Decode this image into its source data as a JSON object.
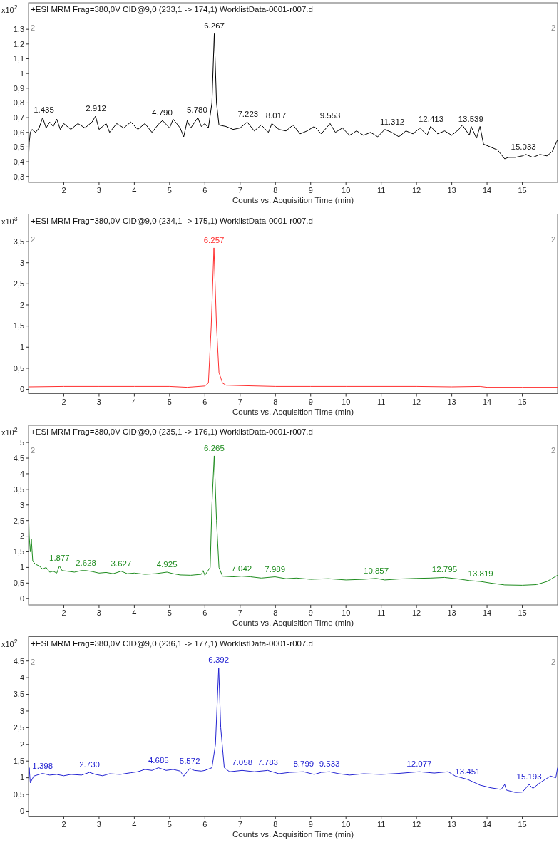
{
  "chart_data": [
    {
      "type": "line",
      "title": "+ESI MRM Frag=380,0V CID@9,0 (233,1 -> 174,1) WorklistData-0001-r007.d",
      "xlabel": "Counts vs. Acquisition Time (min)",
      "ylabel": "x10$^{2}$",
      "xlim": [
        1,
        16
      ],
      "xticks": [
        2,
        3,
        4,
        5,
        6,
        7,
        8,
        9,
        10,
        11,
        12,
        13,
        14,
        15
      ],
      "ylim": [
        0.26,
        1.48
      ],
      "yticks": [
        {
          "value": 0.3,
          "label": "0,3"
        },
        {
          "value": 0.4,
          "label": "0,4"
        },
        {
          "value": 0.5,
          "label": "0,5"
        },
        {
          "value": 0.6,
          "label": "0,6"
        },
        {
          "value": 0.7,
          "label": "0,7"
        },
        {
          "value": 0.8,
          "label": "0,8"
        },
        {
          "value": 0.9,
          "label": "0,9"
        },
        {
          "value": 1,
          "label": "1"
        },
        {
          "value": 1.1,
          "label": "1,1"
        },
        {
          "value": 1.2,
          "label": "1,2"
        },
        {
          "value": 1.3,
          "label": "1,3"
        }
      ],
      "grid": false,
      "legend": false,
      "series": [
        {
          "color": "#000000",
          "x": [
            1.0,
            1.02,
            1.05,
            1.1,
            1.2,
            1.3,
            1.4,
            1.5,
            1.6,
            1.7,
            1.8,
            1.9,
            2.0,
            2.2,
            2.4,
            2.6,
            2.8,
            2.9,
            3.0,
            3.2,
            3.3,
            3.5,
            3.7,
            3.9,
            4.1,
            4.3,
            4.5,
            4.7,
            4.8,
            5.0,
            5.1,
            5.3,
            5.4,
            5.5,
            5.6,
            5.8,
            5.9,
            6.0,
            6.1,
            6.2,
            6.267,
            6.33,
            6.4,
            6.6,
            6.8,
            7.0,
            7.2,
            7.4,
            7.6,
            7.8,
            7.9,
            8.1,
            8.3,
            8.5,
            8.7,
            8.9,
            9.1,
            9.3,
            9.55,
            9.7,
            9.9,
            10.1,
            10.3,
            10.5,
            10.7,
            10.9,
            11.1,
            11.3,
            11.5,
            11.7,
            11.9,
            12.1,
            12.3,
            12.4,
            12.6,
            12.8,
            13.0,
            13.2,
            13.3,
            13.5,
            13.55,
            13.7,
            13.8,
            13.9,
            14.1,
            14.3,
            14.4,
            14.5,
            14.6,
            14.8,
            15.0,
            15.1,
            15.3,
            15.5,
            15.7,
            15.85,
            16.0
          ],
          "values": [
            0.4,
            0.53,
            0.6,
            0.62,
            0.6,
            0.63,
            0.7,
            0.63,
            0.67,
            0.64,
            0.69,
            0.62,
            0.66,
            0.62,
            0.66,
            0.63,
            0.67,
            0.71,
            0.62,
            0.66,
            0.6,
            0.66,
            0.63,
            0.67,
            0.62,
            0.66,
            0.6,
            0.66,
            0.68,
            0.63,
            0.69,
            0.63,
            0.57,
            0.68,
            0.63,
            0.7,
            0.64,
            0.66,
            0.63,
            0.8,
            1.27,
            0.8,
            0.65,
            0.64,
            0.62,
            0.63,
            0.67,
            0.61,
            0.65,
            0.6,
            0.66,
            0.62,
            0.61,
            0.65,
            0.59,
            0.61,
            0.64,
            0.59,
            0.66,
            0.6,
            0.63,
            0.58,
            0.61,
            0.58,
            0.6,
            0.57,
            0.62,
            0.6,
            0.57,
            0.61,
            0.59,
            0.63,
            0.58,
            0.64,
            0.59,
            0.61,
            0.58,
            0.62,
            0.65,
            0.58,
            0.64,
            0.56,
            0.64,
            0.52,
            0.5,
            0.48,
            0.45,
            0.42,
            0.43,
            0.43,
            0.44,
            0.45,
            0.43,
            0.45,
            0.44,
            0.47,
            0.55
          ]
        }
      ],
      "annotations": [
        "2",
        "2",
        {
          "text": "1.435",
          "x": 1.435,
          "y": 0.7
        },
        {
          "text": "2.912",
          "x": 2.912,
          "y": 0.71
        },
        {
          "text": "4.790",
          "x": 4.79,
          "y": 0.68
        },
        {
          "text": "5.780",
          "x": 5.78,
          "y": 0.7
        },
        {
          "text": "6.267",
          "x": 6.267,
          "y": 1.27
        },
        {
          "text": "7.223",
          "x": 7.223,
          "y": 0.67
        },
        {
          "text": "8.017",
          "x": 8.017,
          "y": 0.66
        },
        {
          "text": "9.553",
          "x": 9.553,
          "y": 0.66
        },
        {
          "text": "11.312",
          "x": 11.312,
          "y": 0.62
        },
        {
          "text": "12.413",
          "x": 12.413,
          "y": 0.64
        },
        {
          "text": "13.539",
          "x": 13.539,
          "y": 0.64
        },
        {
          "text": "15.033",
          "x": 15.033,
          "y": 0.45
        }
      ]
    },
    {
      "type": "line",
      "title": "+ESI MRM Frag=380,0V CID@9,0 (234,1 -> 175,1) WorklistData-0001-r007.d",
      "xlabel": "Counts vs. Acquisition Time (min)",
      "ylabel": "x10$^{3}$",
      "xlim": [
        1,
        16
      ],
      "xticks": [
        2,
        3,
        4,
        5,
        6,
        7,
        8,
        9,
        10,
        11,
        12,
        13,
        14,
        15
      ],
      "ylim": [
        -0.1,
        4.15
      ],
      "yticks": [
        0,
        {
          "value": 0.5,
          "label": "0,5"
        },
        1,
        {
          "value": 1.5,
          "label": "1,5"
        },
        2,
        {
          "value": 2.5,
          "label": "2,5"
        },
        3,
        {
          "value": 3.5,
          "label": "3,5"
        }
      ],
      "grid": false,
      "legend": false,
      "series": [
        {
          "color": "#ff3030",
          "x": [
            1.0,
            2,
            3,
            4,
            5,
            5.5,
            6.0,
            6.1,
            6.18,
            6.257,
            6.33,
            6.4,
            6.5,
            6.6,
            7,
            8,
            9,
            10,
            11,
            12,
            13,
            13.8,
            14,
            15,
            16
          ],
          "values": [
            0.06,
            0.07,
            0.07,
            0.07,
            0.07,
            0.05,
            0.08,
            0.15,
            1.5,
            3.35,
            1.5,
            0.4,
            0.15,
            0.1,
            0.09,
            0.07,
            0.07,
            0.07,
            0.07,
            0.07,
            0.06,
            0.07,
            0.05,
            0.05,
            0.05
          ]
        }
      ],
      "annotations": [
        "2",
        "2",
        {
          "text": "6.257",
          "x": 6.257,
          "y": 3.35
        }
      ]
    },
    {
      "type": "line",
      "title": "+ESI MRM Frag=380,0V CID@9,0 (235,1 -> 176,1) WorklistData-0001-r007.d",
      "xlabel": "Counts vs. Acquisition Time (min)",
      "ylabel": "x10$^{2}$",
      "xlim": [
        1,
        16
      ],
      "xticks": [
        2,
        3,
        4,
        5,
        6,
        7,
        8,
        9,
        10,
        11,
        12,
        13,
        14,
        15
      ],
      "ylim": [
        -0.2,
        5.55
      ],
      "yticks": [
        0,
        {
          "value": 0.5,
          "label": "0,5"
        },
        1,
        {
          "value": 1.5,
          "label": "1,5"
        },
        2,
        {
          "value": 2.5,
          "label": "2,5"
        },
        3,
        {
          "value": 3.5,
          "label": "3,5"
        },
        4,
        {
          "value": 4.5,
          "label": "4,5"
        },
        5
      ],
      "grid": false,
      "legend": false,
      "series": [
        {
          "color": "#1e8c1e",
          "x": [
            1.0,
            1.02,
            1.05,
            1.08,
            1.12,
            1.2,
            1.3,
            1.4,
            1.5,
            1.6,
            1.7,
            1.8,
            1.877,
            1.95,
            2.1,
            2.3,
            2.5,
            2.628,
            2.8,
            3.0,
            3.2,
            3.4,
            3.627,
            3.8,
            4.0,
            4.3,
            4.6,
            4.925,
            5.1,
            5.3,
            5.6,
            5.9,
            5.95,
            6.0,
            6.15,
            6.2,
            6.265,
            6.33,
            6.4,
            6.5,
            6.8,
            7.042,
            7.3,
            7.6,
            7.989,
            8.3,
            8.6,
            9.0,
            9.5,
            10.0,
            10.5,
            10.857,
            11.1,
            11.5,
            12.0,
            12.4,
            12.795,
            13.2,
            13.5,
            13.819,
            14.1,
            14.5,
            15.0,
            15.4,
            15.7,
            16.0
          ],
          "values": [
            2.9,
            2.0,
            1.5,
            1.9,
            1.2,
            1.1,
            1.05,
            0.95,
            1.0,
            0.85,
            0.88,
            0.82,
            1.05,
            0.9,
            0.88,
            0.85,
            0.9,
            0.9,
            0.87,
            0.82,
            0.84,
            0.8,
            0.88,
            0.8,
            0.82,
            0.78,
            0.8,
            0.85,
            0.8,
            0.76,
            0.75,
            0.78,
            0.9,
            0.75,
            1.0,
            3.0,
            4.57,
            2.5,
            1.0,
            0.72,
            0.7,
            0.72,
            0.7,
            0.66,
            0.7,
            0.64,
            0.66,
            0.62,
            0.64,
            0.6,
            0.62,
            0.65,
            0.6,
            0.63,
            0.65,
            0.66,
            0.68,
            0.63,
            0.58,
            0.55,
            0.5,
            0.44,
            0.43,
            0.45,
            0.55,
            0.75
          ]
        }
      ],
      "annotations": [
        "2",
        "2",
        {
          "text": "1.877",
          "x": 1.877,
          "y": 1.05
        },
        {
          "text": "2.628",
          "x": 2.628,
          "y": 0.9
        },
        {
          "text": "3.627",
          "x": 3.627,
          "y": 0.88
        },
        {
          "text": "4.925",
          "x": 4.925,
          "y": 0.85
        },
        {
          "text": "6.265",
          "x": 6.265,
          "y": 4.57
        },
        {
          "text": "7.042",
          "x": 7.042,
          "y": 0.72
        },
        {
          "text": "7.989",
          "x": 7.989,
          "y": 0.7
        },
        {
          "text": "10.857",
          "x": 10.857,
          "y": 0.65
        },
        {
          "text": "12.795",
          "x": 12.795,
          "y": 0.68
        },
        {
          "text": "13.819",
          "x": 13.819,
          "y": 0.55
        }
      ]
    },
    {
      "type": "line",
      "title": "+ESI MRM Frag=380,0V CID@9,0 (236,1 -> 177,1) WorklistData-0001-r007.d",
      "xlabel": "Counts vs. Acquisition Time (min)",
      "ylabel": "x10$^{2}$",
      "xlim": [
        1,
        16
      ],
      "xticks": [
        2,
        3,
        4,
        5,
        6,
        7,
        8,
        9,
        10,
        11,
        12,
        13,
        14,
        15
      ],
      "ylim": [
        -0.15,
        5.23
      ],
      "yticks": [
        0,
        {
          "value": 0.5,
          "label": "0,5"
        },
        1,
        {
          "value": 1.5,
          "label": "1,5"
        },
        2,
        {
          "value": 2.5,
          "label": "2,5"
        },
        3,
        {
          "value": 3.5,
          "label": "3,5"
        },
        4,
        {
          "value": 4.5,
          "label": "4,5"
        }
      ],
      "grid": false,
      "legend": false,
      "series": [
        {
          "color": "#2323d2",
          "x": [
            1.0,
            1.02,
            1.05,
            1.15,
            1.3,
            1.398,
            1.6,
            1.8,
            2.0,
            2.2,
            2.5,
            2.73,
            2.9,
            3.1,
            3.3,
            3.6,
            3.9,
            4.1,
            4.3,
            4.5,
            4.685,
            4.9,
            5.1,
            5.3,
            5.4,
            5.5,
            5.572,
            5.7,
            5.9,
            6.0,
            6.2,
            6.3,
            6.392,
            6.45,
            6.55,
            6.7,
            7.058,
            7.4,
            7.783,
            8.1,
            8.4,
            8.799,
            9.1,
            9.3,
            9.533,
            9.8,
            10.1,
            10.5,
            11.0,
            11.5,
            12.077,
            12.5,
            12.9,
            13.1,
            13.451,
            13.8,
            14.1,
            14.4,
            14.5,
            14.55,
            14.8,
            15.0,
            15.193,
            15.3,
            15.5,
            15.8,
            15.95,
            16.0
          ],
          "values": [
            0.65,
            1.3,
            0.85,
            1.05,
            1.1,
            1.13,
            1.08,
            1.1,
            1.06,
            1.1,
            1.08,
            1.16,
            1.1,
            1.06,
            1.12,
            1.1,
            1.15,
            1.18,
            1.25,
            1.22,
            1.3,
            1.22,
            1.25,
            1.2,
            1.05,
            1.18,
            1.28,
            1.22,
            1.2,
            1.22,
            1.3,
            2.0,
            4.3,
            2.5,
            1.3,
            1.18,
            1.22,
            1.18,
            1.22,
            1.12,
            1.16,
            1.18,
            1.1,
            1.16,
            1.18,
            1.12,
            1.08,
            1.12,
            1.1,
            1.13,
            1.18,
            1.14,
            1.18,
            1.05,
            0.95,
            0.78,
            0.7,
            0.65,
            0.8,
            0.63,
            0.56,
            0.57,
            0.8,
            0.68,
            0.85,
            1.05,
            1.0,
            1.3
          ]
        }
      ],
      "annotations": [
        "2",
        "2",
        {
          "text": "1.398",
          "x": 1.398,
          "y": 1.13
        },
        {
          "text": "2.730",
          "x": 2.73,
          "y": 1.16
        },
        {
          "text": "4.685",
          "x": 4.685,
          "y": 1.3
        },
        {
          "text": "5.572",
          "x": 5.572,
          "y": 1.28
        },
        {
          "text": "6.392",
          "x": 6.392,
          "y": 4.3
        },
        {
          "text": "7.058",
          "x": 7.058,
          "y": 1.22
        },
        {
          "text": "7.783",
          "x": 7.783,
          "y": 1.22
        },
        {
          "text": "8.799",
          "x": 8.799,
          "y": 1.18
        },
        {
          "text": "9.533",
          "x": 9.533,
          "y": 1.18
        },
        {
          "text": "12.077",
          "x": 12.077,
          "y": 1.18
        },
        {
          "text": "13.451",
          "x": 13.451,
          "y": 0.95
        },
        {
          "text": "15.193",
          "x": 15.193,
          "y": 0.8
        }
      ]
    }
  ]
}
